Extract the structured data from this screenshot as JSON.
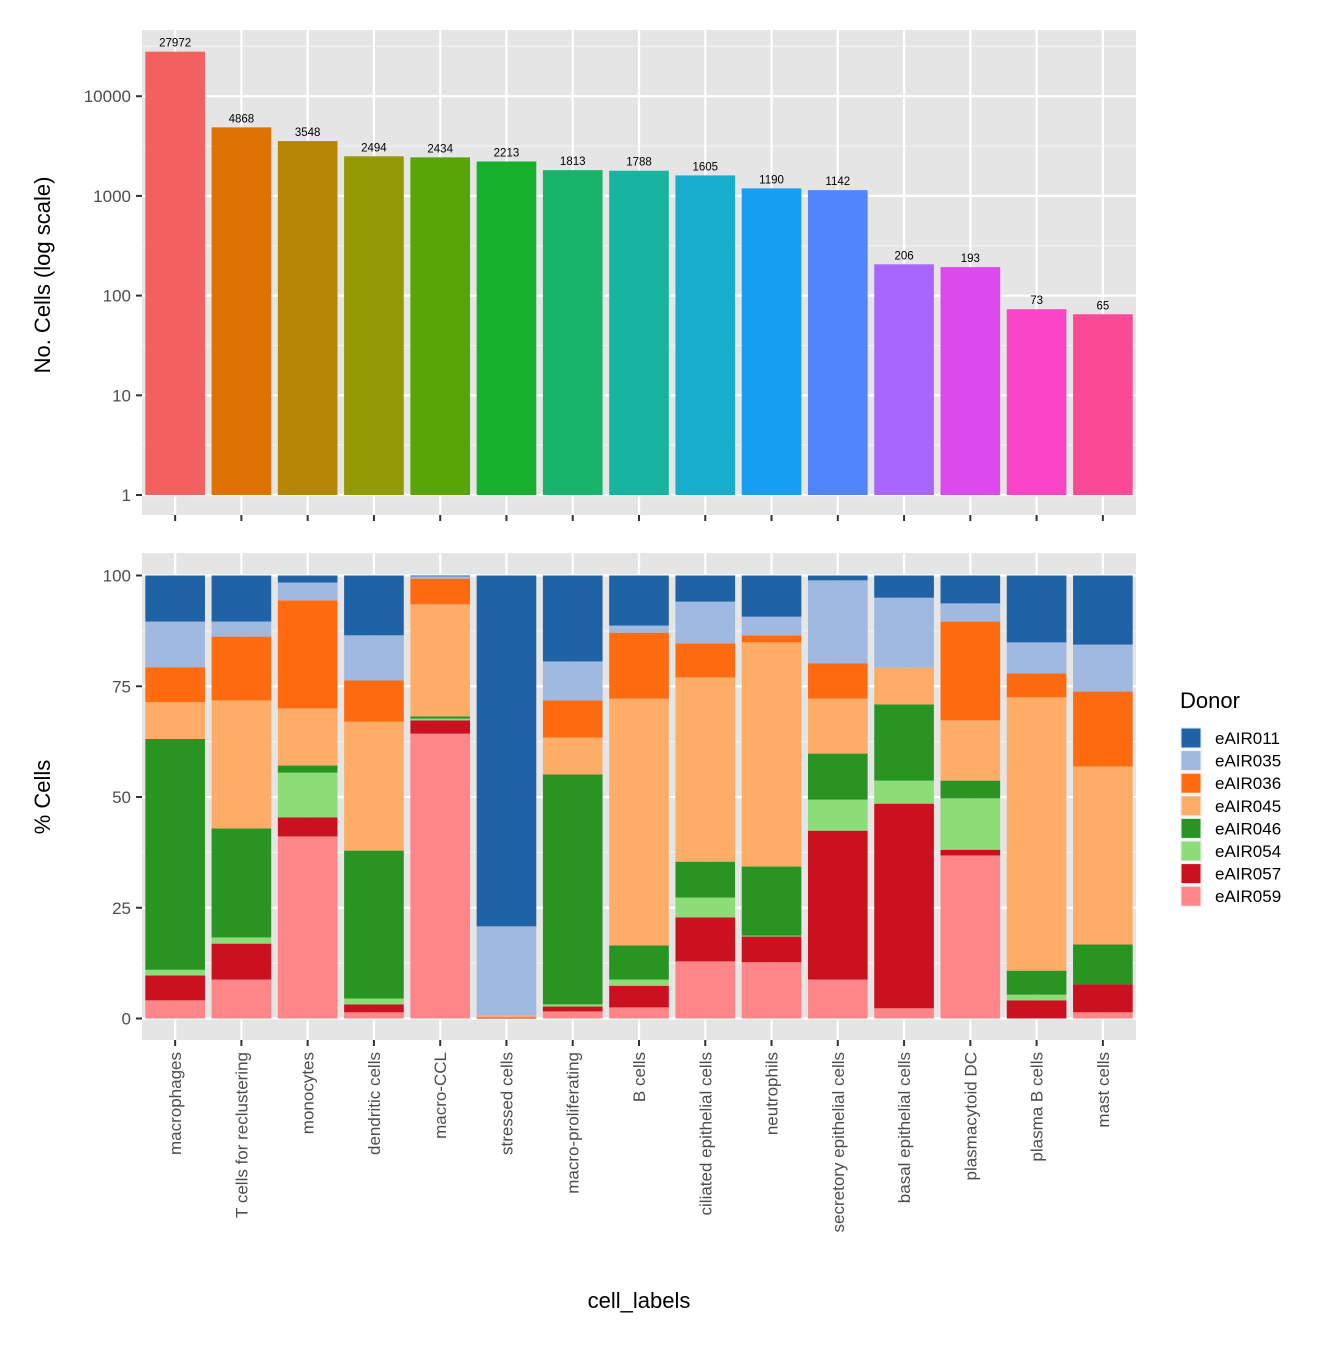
{
  "chart_data": [
    {
      "type": "bar",
      "panel": "top",
      "title": "",
      "xlabel": "",
      "ylabel": "No. Cells (log scale)",
      "yscale": "log10",
      "ylim": [
        1,
        30000
      ],
      "yticks": [
        1,
        10,
        100,
        1000,
        10000
      ],
      "ytick_labels": [
        "1",
        "10",
        "100",
        "1000",
        "10000"
      ],
      "grid": true,
      "categories": [
        "macrophages",
        "T cells for reclustering",
        "monocytes",
        "dendritic cells",
        "macro-CCL",
        "stressed cells",
        "macro-proliferating",
        "B cells",
        "ciliated epithelial cells",
        "neutrophils",
        "secretory epithelial cells",
        "basal epithelial cells",
        "plasmacytoid DC",
        "plasma B cells",
        "mast cells"
      ],
      "values": [
        27972,
        4868,
        3548,
        2494,
        2434,
        2213,
        1813,
        1788,
        1605,
        1190,
        1142,
        206,
        193,
        73,
        65
      ],
      "data_labels": [
        "27972",
        "4868",
        "3548",
        "2494",
        "2434",
        "2213",
        "1813",
        "1788",
        "1605",
        "1190",
        "1142",
        "206",
        "193",
        "73",
        "65"
      ],
      "colors": [
        "#F8766D",
        "#E18A00",
        "#BE9C00",
        "#8CAB00",
        "#24B700",
        "#00BE70",
        "#00C1AB",
        "#00BBDA",
        "#00ACFC",
        "#8B93FF",
        "#D575FE",
        "#F962DD",
        "#FF65AC",
        "#FF6E8B",
        "#F8766D"
      ],
      "render_colors": [
        "#F2605F",
        "#DE7303",
        "#B88606",
        "#939A04",
        "#58A508",
        "#16B02D",
        "#18B46A",
        "#17B49F",
        "#17AECE",
        "#169EF0",
        "#5085FE",
        "#A966FC",
        "#DC4AEE",
        "#F944C6",
        "#FB4A95"
      ],
      "legend": "none"
    },
    {
      "type": "bar",
      "stacked": true,
      "panel": "bottom",
      "title": "",
      "xlabel": "cell_labels",
      "ylabel": "% Cells",
      "ylim": [
        0,
        100
      ],
      "yticks": [
        0,
        25,
        50,
        75,
        100
      ],
      "ytick_labels": [
        "0",
        "25",
        "50",
        "75",
        "100"
      ],
      "grid": true,
      "categories": [
        "macrophages",
        "T cells for reclustering",
        "monocytes",
        "dendritic cells",
        "macro-CCL",
        "stressed cells",
        "macro-proliferating",
        "B cells",
        "ciliated epithelial cells",
        "neutrophils",
        "secretory epithelial cells",
        "basal epithelial cells",
        "plasmacytoid DC",
        "plasma B cells",
        "mast cells"
      ],
      "legend_title": "Donor",
      "legend_position": "right",
      "series": [
        {
          "name": "eAIR011",
          "color": "#1F62A5",
          "values": [
            10.4,
            10.4,
            1.6,
            13.5,
            0.2,
            79.2,
            19.4,
            11.3,
            5.9,
            9.3,
            1.1,
            5.0,
            6.3,
            15.1,
            15.6
          ]
        },
        {
          "name": "eAIR035",
          "color": "#A0B9E0",
          "values": [
            10.3,
            3.4,
            4.0,
            10.2,
            0.5,
            20.1,
            8.8,
            1.6,
            9.4,
            4.2,
            18.7,
            15.8,
            4.1,
            7.0,
            10.6
          ]
        },
        {
          "name": "eAIR036",
          "color": "#FE6B11",
          "values": [
            7.9,
            14.4,
            24.4,
            9.3,
            5.8,
            0.0,
            8.4,
            14.9,
            7.7,
            1.6,
            8.0,
            0.0,
            22.3,
            5.4,
            16.9
          ]
        },
        {
          "name": "eAIR045",
          "color": "#FDAD67",
          "values": [
            8.3,
            28.9,
            12.9,
            29.1,
            25.3,
            0.5,
            8.3,
            55.7,
            41.6,
            50.6,
            12.4,
            8.3,
            13.6,
            61.7,
            40.2
          ]
        },
        {
          "name": "eAIR046",
          "color": "#299422",
          "values": [
            52.1,
            24.6,
            1.6,
            33.4,
            0.5,
            0.0,
            51.9,
            7.7,
            8.1,
            15.6,
            10.4,
            17.2,
            4.0,
            5.4,
            9.0
          ]
        },
        {
          "name": "eAIR054",
          "color": "#8CDC77",
          "values": [
            1.3,
            1.4,
            10.1,
            1.3,
            0.4,
            0.0,
            0.5,
            1.4,
            4.5,
            0.2,
            7.0,
            5.2,
            11.6,
            1.3,
            0.0
          ]
        },
        {
          "name": "eAIR057",
          "color": "#C9111F",
          "values": [
            5.6,
            8.1,
            4.3,
            1.8,
            3.0,
            0.2,
            1.1,
            4.9,
            9.9,
            5.8,
            33.6,
            46.2,
            1.3,
            4.1,
            6.3
          ]
        },
        {
          "name": "eAIR059",
          "color": "#FE8688",
          "values": [
            4.1,
            8.8,
            41.1,
            1.4,
            64.3,
            0.0,
            1.6,
            2.5,
            12.9,
            12.7,
            8.8,
            2.3,
            36.8,
            0.0,
            1.4
          ]
        }
      ]
    }
  ]
}
